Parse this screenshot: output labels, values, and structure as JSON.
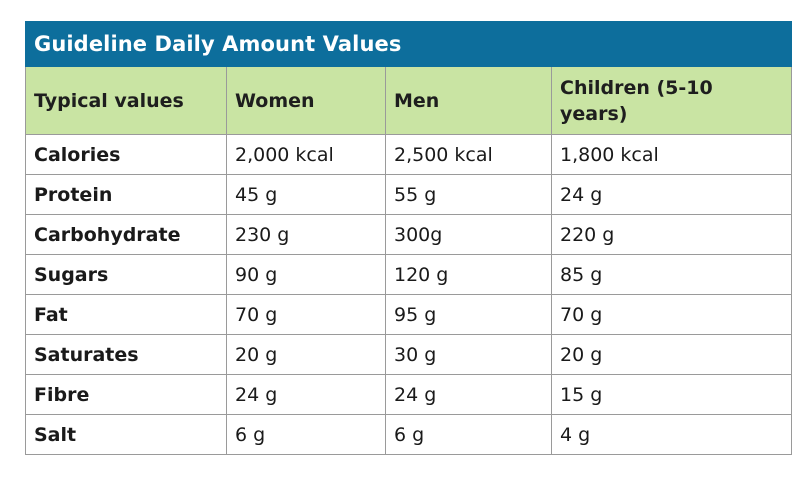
{
  "table": {
    "title": "Guideline Daily Amount Values",
    "headers": [
      "Typical values",
      "Women",
      "Men",
      "Children (5-10 years)"
    ],
    "rows": [
      [
        "Calories",
        "2,000 kcal",
        "2,500 kcal",
        "1,800 kcal"
      ],
      [
        "Protein",
        "45 g",
        "55 g",
        "24 g"
      ],
      [
        "Carbohydrate",
        "230 g",
        "300g",
        "220 g"
      ],
      [
        "Sugars",
        "90 g",
        "120 g",
        "85 g"
      ],
      [
        "Fat",
        "70 g",
        "95 g",
        "70 g"
      ],
      [
        "Saturates",
        "20 g",
        "30 g",
        "20 g"
      ],
      [
        "Fibre",
        "24 g",
        "24 g",
        "15 g"
      ],
      [
        "Salt",
        "6 g",
        "6 g",
        "4 g"
      ]
    ],
    "colors": {
      "title_background": "#0d6e9c",
      "header_background": "#c9e4a3",
      "border": "#9a9a9a"
    }
  }
}
